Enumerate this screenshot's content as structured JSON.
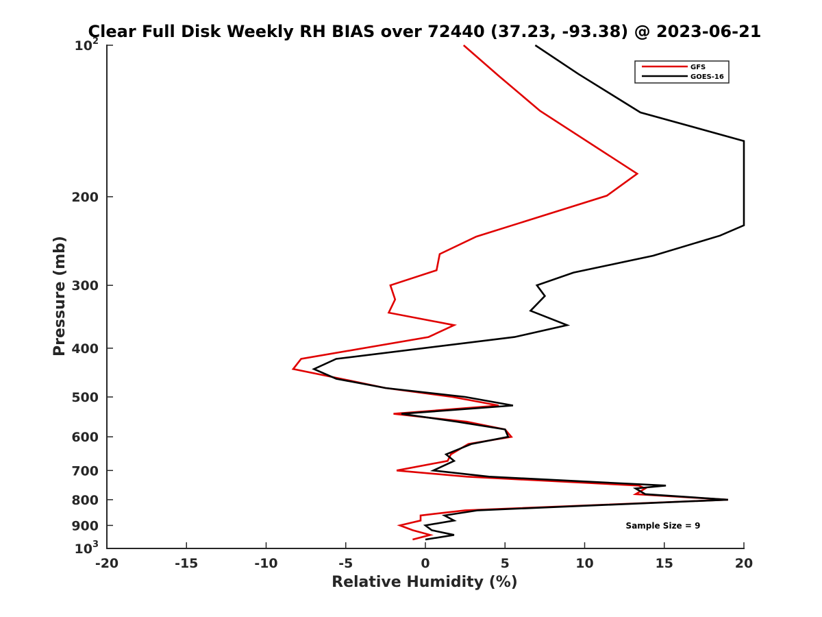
{
  "chart_data": {
    "type": "line",
    "title": "Clear Full Disk Weekly RH BIAS over 72440 (37.23, -93.38) @ 2023-06-21",
    "xlabel": "Relative Humidity (%)",
    "ylabel": "Pressure (mb)",
    "xlim": [
      -20,
      20
    ],
    "ylim": [
      100,
      1000
    ],
    "y_scale": "log",
    "y_reversed": true,
    "grid": false,
    "x_ticks": [
      -20,
      -15,
      -10,
      -5,
      0,
      5,
      10,
      15,
      20
    ],
    "x_tick_labels": [
      "-20",
      "-15",
      "-10",
      "-5",
      "0",
      "5",
      "10",
      "15",
      "20"
    ],
    "y_ticks": [
      100,
      200,
      300,
      400,
      500,
      600,
      700,
      800,
      900,
      1000
    ],
    "y_tick_labels": [
      {
        "base": "10",
        "exp": "2"
      },
      {
        "base": "200",
        "exp": ""
      },
      {
        "base": "300",
        "exp": ""
      },
      {
        "base": "400",
        "exp": ""
      },
      {
        "base": "500",
        "exp": ""
      },
      {
        "base": "600",
        "exp": ""
      },
      {
        "base": "700",
        "exp": ""
      },
      {
        "base": "800",
        "exp": ""
      },
      {
        "base": "900",
        "exp": ""
      },
      {
        "base": "10",
        "exp": "3"
      }
    ],
    "legend_position": "top-right",
    "annotation": "Sample Size = 9",
    "series": [
      {
        "name": "GFS",
        "color": "#e00000",
        "points": [
          [
            2.4,
            100
          ],
          [
            4.6,
            115
          ],
          [
            7.2,
            135
          ],
          [
            13.3,
            180
          ],
          [
            11.4,
            199
          ],
          [
            3.2,
            240
          ],
          [
            0.9,
            260
          ],
          [
            0.7,
            280
          ],
          [
            -2.2,
            300
          ],
          [
            -1.9,
            320
          ],
          [
            -2.3,
            340
          ],
          [
            1.8,
            360
          ],
          [
            0.2,
            380
          ],
          [
            -7.8,
            420
          ],
          [
            -8.3,
            440
          ],
          [
            -5.3,
            460
          ],
          [
            -2.5,
            480
          ],
          [
            1.7,
            500
          ],
          [
            4.6,
            520
          ],
          [
            -2.0,
            540
          ],
          [
            2.6,
            560
          ],
          [
            5.0,
            580
          ],
          [
            5.4,
            600
          ],
          [
            2.7,
            620
          ],
          [
            1.6,
            650
          ],
          [
            1.4,
            670
          ],
          [
            -1.8,
            700
          ],
          [
            2.6,
            720
          ],
          [
            13.4,
            750
          ],
          [
            13.8,
            760
          ],
          [
            13.2,
            780
          ],
          [
            19.0,
            800
          ],
          [
            2.5,
            840
          ],
          [
            -0.3,
            860
          ],
          [
            -0.3,
            880
          ],
          [
            -1.6,
            900
          ],
          [
            -0.8,
            920
          ],
          [
            0.3,
            940
          ],
          [
            -0.8,
            960
          ]
        ]
      },
      {
        "name": "GOES-16",
        "color": "#000000",
        "points": [
          [
            6.9,
            100
          ],
          [
            9.6,
            114
          ],
          [
            13.5,
            136
          ],
          [
            20.0,
            155
          ],
          [
            20.0,
            228
          ],
          [
            18.5,
            239
          ],
          [
            14.3,
            262
          ],
          [
            9.3,
            283
          ],
          [
            7.0,
            300
          ],
          [
            7.5,
            315
          ],
          [
            6.6,
            337
          ],
          [
            8.9,
            360
          ],
          [
            5.6,
            380
          ],
          [
            -5.6,
            420
          ],
          [
            -7.0,
            440
          ],
          [
            -5.6,
            460
          ],
          [
            -2.5,
            480
          ],
          [
            2.5,
            500
          ],
          [
            5.5,
            520
          ],
          [
            -1.5,
            540
          ],
          [
            2.0,
            560
          ],
          [
            5.0,
            580
          ],
          [
            5.2,
            600
          ],
          [
            2.9,
            620
          ],
          [
            1.3,
            650
          ],
          [
            1.8,
            670
          ],
          [
            0.5,
            700
          ],
          [
            4.0,
            720
          ],
          [
            15.1,
            750
          ],
          [
            13.2,
            760
          ],
          [
            13.8,
            780
          ],
          [
            19.0,
            800
          ],
          [
            3.3,
            840
          ],
          [
            1.2,
            860
          ],
          [
            1.8,
            880
          ],
          [
            0.0,
            900
          ],
          [
            0.4,
            920
          ],
          [
            1.8,
            940
          ],
          [
            0.0,
            960
          ]
        ]
      }
    ]
  }
}
